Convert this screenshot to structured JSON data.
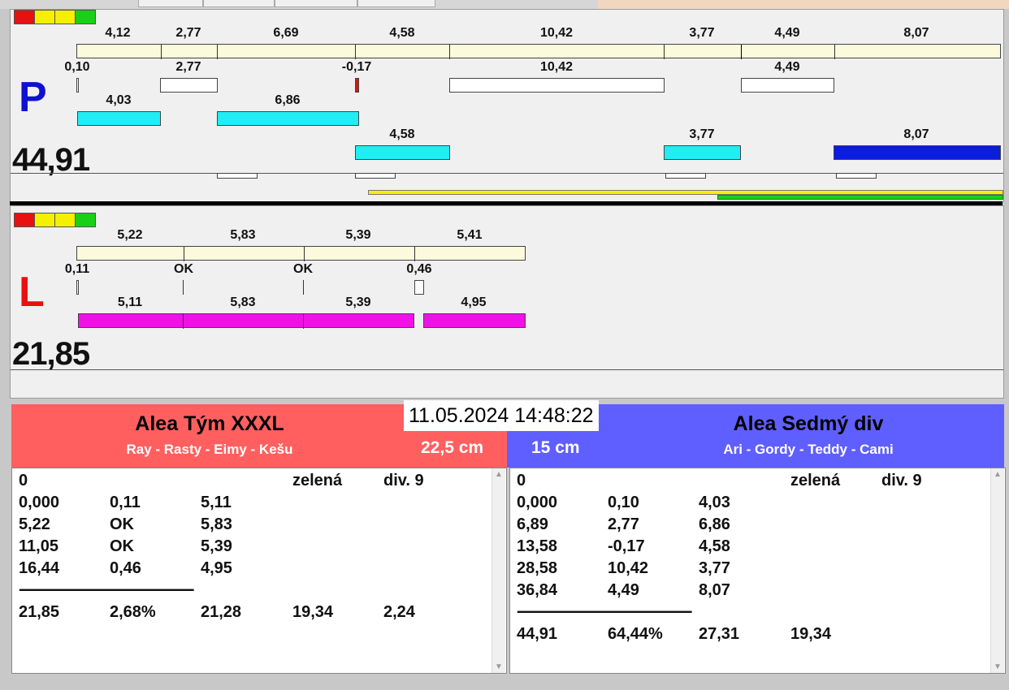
{
  "colors": {
    "left_team_bg": "#ff5f5f",
    "right_team_bg": "#5f5fff",
    "p_letter": "#1010d0",
    "l_letter": "#e81010",
    "cream_bar": "#fcfadc",
    "cyan_bar": "#22ecf4",
    "blue_bar": "#0a1edc",
    "magenta_bar": "#ee12e8"
  },
  "traffic_lights": [
    "#e81010",
    "#f5ef00",
    "#f5ef00",
    "#18d018"
  ],
  "panel_p": {
    "letter": "P",
    "total": "44,91",
    "row1_labels": [
      "4,12",
      "2,77",
      "6,69",
      "4,58",
      "10,42",
      "3,77",
      "4,49",
      "8,07"
    ],
    "row2_labels": [
      "0,10",
      "2,77",
      "-0,17",
      "10,42",
      "4,49"
    ],
    "row3_labels": [
      "4,03",
      "6,86"
    ],
    "row4_labels": [
      "4,58",
      "3,77",
      "8,07"
    ]
  },
  "panel_l": {
    "letter": "L",
    "total": "21,85",
    "row1_labels": [
      "5,22",
      "5,83",
      "5,39",
      "5,41"
    ],
    "row2_labels": [
      "0,11",
      "OK",
      "OK",
      "0,46"
    ],
    "row3_labels": [
      "5,11",
      "5,83",
      "5,39",
      "4,95"
    ]
  },
  "clock": "11.05.2024 14:48:22",
  "left_team": {
    "name": "Alea Tým XXXL",
    "members": "Ray - Rasty - Eimy - Kešu",
    "distance": "22,5 cm",
    "header": [
      "0",
      "",
      "",
      "zelená",
      "div. 9"
    ],
    "rows": [
      [
        "0,000",
        "0,11",
        "5,11"
      ],
      [
        "5,22",
        "OK",
        "5,83"
      ],
      [
        "11,05",
        "OK",
        "5,39"
      ],
      [
        "16,44",
        "0,46",
        "4,95"
      ]
    ],
    "separator": "----------------------------------------------",
    "summary": [
      "21,85",
      "2,68%",
      "21,28",
      "19,34",
      "2,24"
    ]
  },
  "right_team": {
    "name": "Alea Sedmý div",
    "members": "Ari - Gordy - Teddy - Cami",
    "distance": "15 cm",
    "header": [
      "0",
      "",
      "",
      "zelená",
      "div. 9"
    ],
    "rows": [
      [
        "0,000",
        "0,10",
        "4,03"
      ],
      [
        "6,89",
        "2,77",
        "6,86"
      ],
      [
        "13,58",
        "-0,17",
        "4,58"
      ],
      [
        "28,58",
        "10,42",
        "3,77"
      ],
      [
        "36,84",
        "4,49",
        "8,07"
      ]
    ],
    "separator": "----------------------------------------------",
    "summary": [
      "44,91",
      "64,44%",
      "27,31",
      "19,34",
      ""
    ]
  }
}
